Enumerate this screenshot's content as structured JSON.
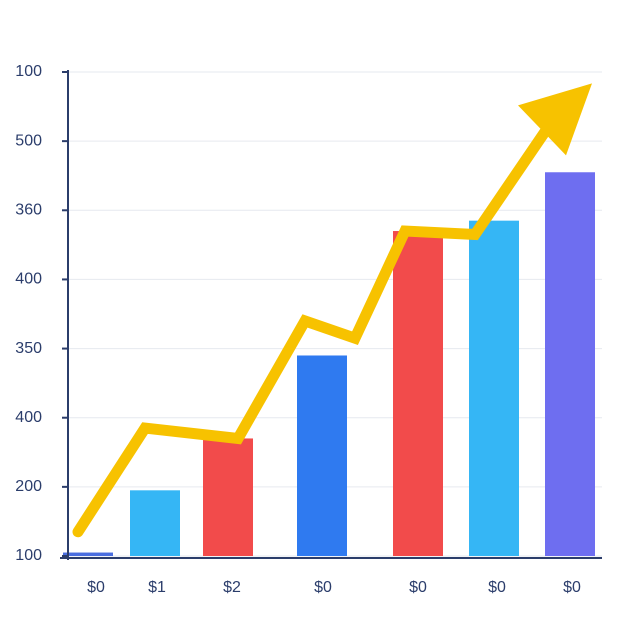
{
  "chart_data": {
    "type": "bar",
    "categories": [
      "$0",
      "$1",
      "$2",
      "$0",
      "$0",
      "$0",
      "$0"
    ],
    "values": [
      0.05,
      0.95,
      1.7,
      2.9,
      4.7,
      4.85,
      5.55
    ],
    "colors": [
      "#4a6ee0",
      "#35b6f5",
      "#f24b4b",
      "#2f7af0",
      "#f24b4b",
      "#35b6f5",
      "#6e6ef0"
    ],
    "ylim": [
      0,
      7
    ],
    "yticks": [
      {
        "value": 0,
        "label": "100"
      },
      {
        "value": 1,
        "label": "200"
      },
      {
        "value": 2,
        "label": "400"
      },
      {
        "value": 3,
        "label": "350"
      },
      {
        "value": 4,
        "label": "400"
      },
      {
        "value": 5,
        "label": "360"
      },
      {
        "value": 6,
        "label": "500"
      },
      {
        "value": 7,
        "label": "100"
      }
    ],
    "grid": true,
    "trend": {
      "color": "#f7c200",
      "values": [
        0.35,
        1.85,
        1.7,
        3.4,
        3.15,
        4.7,
        4.65,
        6.2
      ]
    }
  }
}
